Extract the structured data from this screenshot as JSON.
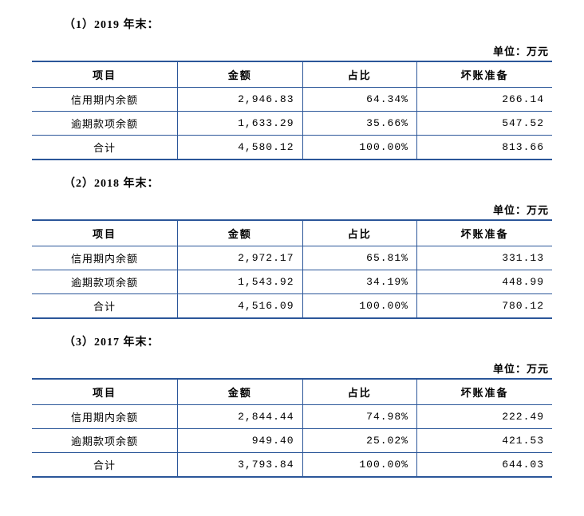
{
  "unit_label": "单位：万元",
  "columns": [
    "项目",
    "金额",
    "占比",
    "坏账准备"
  ],
  "row_labels": {
    "credit_period": "信用期内余额",
    "overdue": "逾期款项余额",
    "total": "合计"
  },
  "border_color": "#2b5699",
  "sections": [
    {
      "title": "（1）2019 年末：",
      "rows": [
        {
          "label_key": "credit_period",
          "amount": "2,946.83",
          "ratio": "64.34%",
          "provision": "266.14"
        },
        {
          "label_key": "overdue",
          "amount": "1,633.29",
          "ratio": "35.66%",
          "provision": "547.52"
        },
        {
          "label_key": "total",
          "amount": "4,580.12",
          "ratio": "100.00%",
          "provision": "813.66"
        }
      ]
    },
    {
      "title": "（2）2018 年末：",
      "rows": [
        {
          "label_key": "credit_period",
          "amount": "2,972.17",
          "ratio": "65.81%",
          "provision": "331.13"
        },
        {
          "label_key": "overdue",
          "amount": "1,543.92",
          "ratio": "34.19%",
          "provision": "448.99"
        },
        {
          "label_key": "total",
          "amount": "4,516.09",
          "ratio": "100.00%",
          "provision": "780.12"
        }
      ]
    },
    {
      "title": "（3）2017 年末：",
      "rows": [
        {
          "label_key": "credit_period",
          "amount": "2,844.44",
          "ratio": "74.98%",
          "provision": "222.49"
        },
        {
          "label_key": "overdue",
          "amount": "949.40",
          "ratio": "25.02%",
          "provision": "421.53"
        },
        {
          "label_key": "total",
          "amount": "3,793.84",
          "ratio": "100.00%",
          "provision": "644.03"
        }
      ]
    }
  ]
}
